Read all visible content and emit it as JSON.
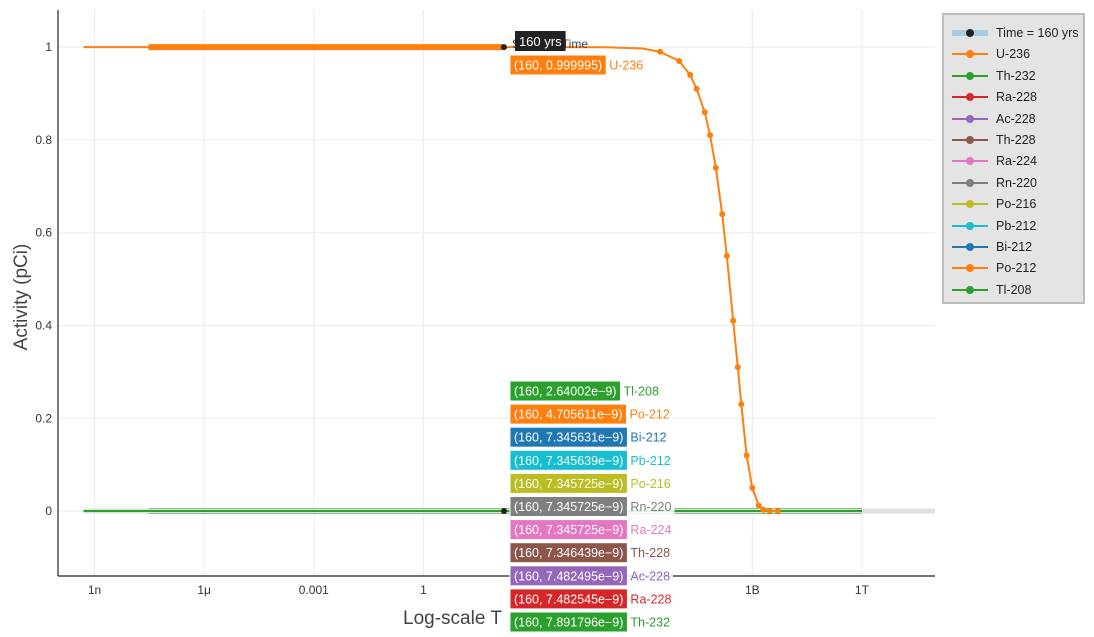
{
  "chart_data": {
    "type": "line",
    "title": "",
    "xlabel": "Log-scale T",
    "ylabel": "Activity (pCi)",
    "x_scale": "log",
    "x_ticks": [
      {
        "value": 1e-09,
        "label": "1n"
      },
      {
        "value": 1e-06,
        "label": "1μ"
      },
      {
        "value": 0.001,
        "label": "0.001"
      },
      {
        "value": 1,
        "label": "1"
      },
      {
        "value": 1000000000.0,
        "label": "1B"
      },
      {
        "value": 1000000000000.0,
        "label": "1T"
      }
    ],
    "y_ticks": [
      0,
      0.2,
      0.4,
      0.6,
      0.8,
      1
    ],
    "xlim": [
      1e-10,
      100000000000000.0
    ],
    "ylim": [
      -0.14,
      1.08
    ],
    "grid": true,
    "legend_position": "right",
    "selected_time": {
      "x": 160,
      "label": "160 yrs",
      "legend_label": "Time = 160 yrs",
      "annotation": "Selected Time"
    },
    "series": [
      {
        "name": "U-236",
        "color": "#ff7f0e",
        "points": [
          [
            5e-10,
            1
          ],
          [
            1e-08,
            1
          ],
          [
            0.0001,
            1
          ],
          [
            1,
            1
          ],
          [
            160,
            0.999995
          ],
          [
            100000.0,
            0.9997
          ],
          [
            1000000.0,
            0.997
          ],
          [
            3000000.0,
            0.99
          ],
          [
            10000000.0,
            0.97
          ],
          [
            20000000.0,
            0.94
          ],
          [
            30000000.0,
            0.91
          ],
          [
            50000000.0,
            0.86
          ],
          [
            70000000.0,
            0.81
          ],
          [
            100000000.0,
            0.74
          ],
          [
            150000000.0,
            0.64
          ],
          [
            200000000.0,
            0.55
          ],
          [
            300000000.0,
            0.41
          ],
          [
            400000000.0,
            0.31
          ],
          [
            500000000.0,
            0.23
          ],
          [
            700000000.0,
            0.12
          ],
          [
            1000000000.0,
            0.05
          ],
          [
            1500000000.0,
            0.012
          ],
          [
            2000000000.0,
            0.003
          ],
          [
            3000000000.0,
            0.0002
          ],
          [
            5000000000.0,
            0
          ]
        ]
      },
      {
        "name": "Th-232",
        "color": "#2ca02c",
        "points": [
          [
            5e-10,
            0
          ],
          [
            1000000000000.0,
            0
          ]
        ]
      },
      {
        "name": "Ra-228",
        "color": "#d62728",
        "points": [
          [
            5e-10,
            0
          ],
          [
            1000000000000.0,
            0
          ]
        ]
      },
      {
        "name": "Ac-228",
        "color": "#9467bd",
        "points": [
          [
            5e-10,
            0
          ],
          [
            1000000000000.0,
            0
          ]
        ]
      },
      {
        "name": "Th-228",
        "color": "#8c564b",
        "points": [
          [
            5e-10,
            0
          ],
          [
            1000000000000.0,
            0
          ]
        ]
      },
      {
        "name": "Ra-224",
        "color": "#e377c2",
        "points": [
          [
            5e-10,
            0
          ],
          [
            1000000000000.0,
            0
          ]
        ]
      },
      {
        "name": "Rn-220",
        "color": "#7f7f7f",
        "points": [
          [
            5e-10,
            0
          ],
          [
            100000000000000.0,
            0
          ]
        ]
      },
      {
        "name": "Po-216",
        "color": "#bcbd22",
        "points": [
          [
            5e-10,
            0
          ],
          [
            1000000000000.0,
            0
          ]
        ]
      },
      {
        "name": "Pb-212",
        "color": "#17becf",
        "points": [
          [
            5e-10,
            0
          ],
          [
            1000000000000.0,
            0
          ]
        ]
      },
      {
        "name": "Bi-212",
        "color": "#1f77b4",
        "points": [
          [
            5e-10,
            0
          ],
          [
            1000000000000.0,
            0
          ]
        ]
      },
      {
        "name": "Po-212",
        "color": "#ff7f0e",
        "points": [
          [
            5e-10,
            0
          ],
          [
            1000000000000.0,
            0
          ]
        ]
      },
      {
        "name": "Tl-208",
        "color": "#2ca02c",
        "points": [
          [
            5e-10,
            0
          ],
          [
            1000000000000.0,
            0
          ]
        ]
      }
    ],
    "hover_labels_top": [
      {
        "value": "(160, 0.999995)",
        "name": "U-236",
        "color": "#ff7f0e"
      }
    ],
    "hover_labels_bottom": [
      {
        "value": "(160, 2.64002e−9)",
        "name": "Tl-208",
        "color": "#2ca02c"
      },
      {
        "value": "(160, 4.705611e−9)",
        "name": "Po-212",
        "color": "#ff7f0e"
      },
      {
        "value": "(160, 7.345631e−9)",
        "name": "Bi-212",
        "color": "#1f77b4"
      },
      {
        "value": "(160, 7.345639e−9)",
        "name": "Pb-212",
        "color": "#17becf"
      },
      {
        "value": "(160, 7.345725e−9)",
        "name": "Po-216",
        "color": "#bcbd22"
      },
      {
        "value": "(160, 7.345725e−9)",
        "name": "Rn-220",
        "color": "#7f7f7f"
      },
      {
        "value": "(160, 7.345725e−9)",
        "name": "Ra-224",
        "color": "#e377c2"
      },
      {
        "value": "(160, 7.346439e−9)",
        "name": "Th-228",
        "color": "#8c564b"
      },
      {
        "value": "(160, 7.482495e−9)",
        "name": "Ac-228",
        "color": "#9467bd"
      },
      {
        "value": "(160, 7.482545e−9)",
        "name": "Ra-228",
        "color": "#d62728"
      },
      {
        "value": "(160, 7.891796e−9)",
        "name": "Th-232",
        "color": "#2ca02c"
      }
    ]
  }
}
